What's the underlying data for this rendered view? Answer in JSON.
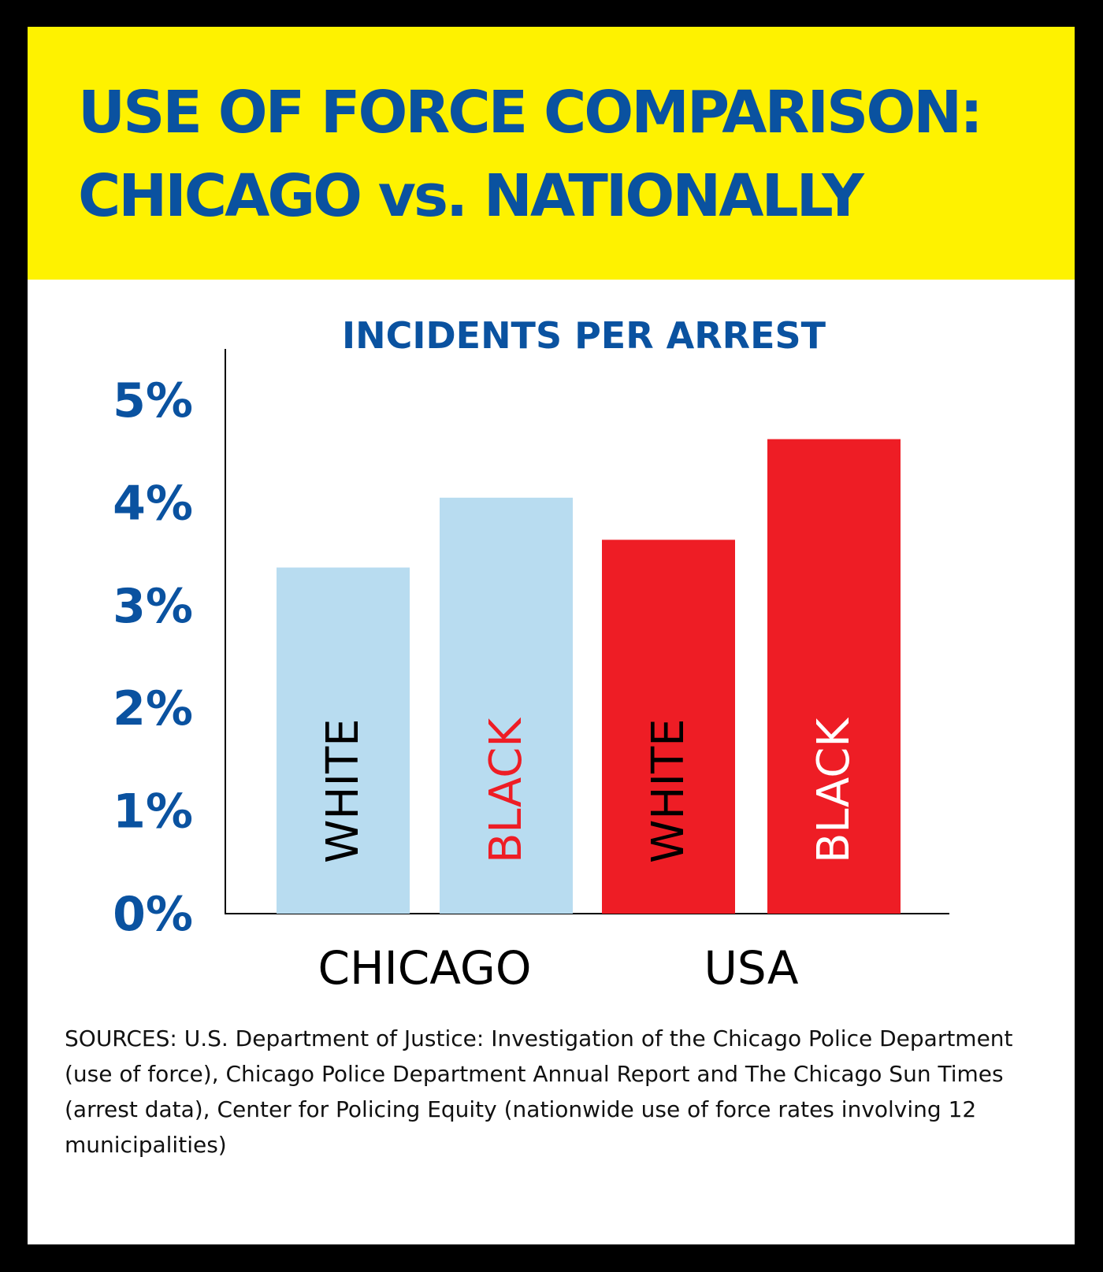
{
  "title": {
    "line1": "USE OF FORCE COMPARISON:",
    "line2": "CHICAGO vs. NATIONALLY"
  },
  "chart_data": {
    "type": "bar",
    "title": "INCIDENTS PER ARREST",
    "categories": [
      "CHICAGO",
      "USA"
    ],
    "ylim": [
      0,
      5
    ],
    "yticks": [
      "0%",
      "1%",
      "2%",
      "3%",
      "4%",
      "5%"
    ],
    "grid": false,
    "bars": [
      {
        "category": "CHICAGO",
        "label": "WHITE",
        "value": 3.37,
        "color": "#b8dcf0",
        "label_color": "#000000"
      },
      {
        "category": "CHICAGO",
        "label": "BLACK",
        "value": 4.05,
        "color": "#b8dcf0",
        "label_color": "#ee1d25"
      },
      {
        "category": "USA",
        "label": "WHITE",
        "value": 3.64,
        "color": "#ee1d25",
        "label_color": "#000000"
      },
      {
        "category": "USA",
        "label": "BLACK",
        "value": 4.62,
        "color": "#ee1d25",
        "label_color": "#ffffff"
      }
    ]
  },
  "sources": "SOURCES:  U.S. Department of Justice: Investigation of the Chicago Police Department (use of force), Chicago Police Department Annual Report and The Chicago Sun Times (arrest data), Center for Policing Equity (nationwide use of force rates involving 12 municipalities)",
  "colors": {
    "header_bg": "#fef200",
    "title_text": "#0a52a0",
    "frame": "#000000"
  }
}
